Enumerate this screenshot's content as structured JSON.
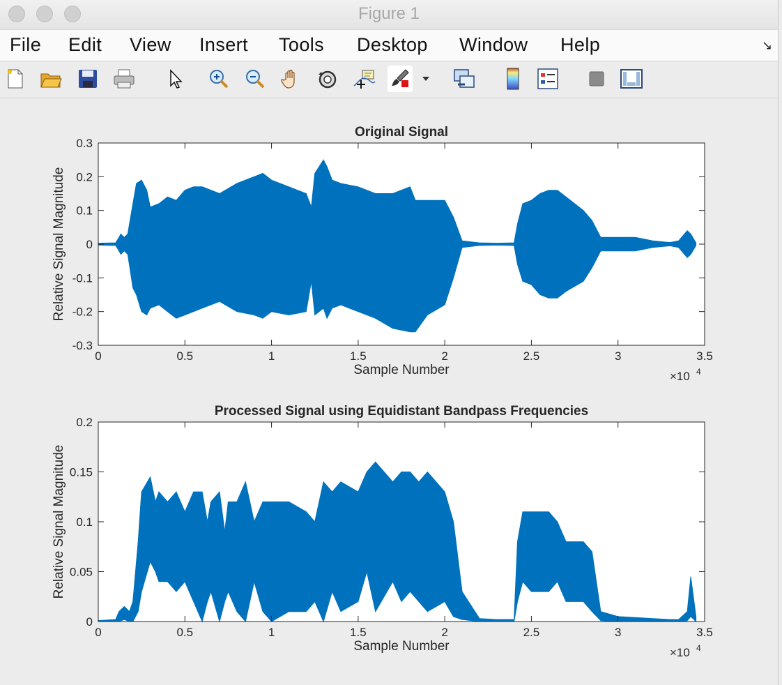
{
  "window": {
    "title": "Figure 1"
  },
  "menu": [
    "File",
    "Edit",
    "View",
    "Insert",
    "Tools",
    "Desktop",
    "Window",
    "Help"
  ],
  "toolbar": [
    "new-figure-icon",
    "open-file-icon",
    "save-icon",
    "print-icon",
    "pointer-icon",
    "zoom-in-icon",
    "zoom-out-icon",
    "pan-icon",
    "rotate-3d-icon",
    "data-cursor-icon",
    "brush-icon",
    "brush-dropdown-icon",
    "link-plot-icon",
    "colorbar-icon",
    "legend-icon",
    "hide-plot-tools-icon",
    "show-plot-tools-icon"
  ],
  "colors": {
    "series": "#0072BD",
    "axes_bg": "#ffffff",
    "figure_bg": "#ececec"
  },
  "chart_data": [
    {
      "type": "line",
      "title": "Original Signal",
      "xlabel": "Sample Number",
      "ylabel": "Relative Signal Magnitude",
      "xlim": [
        0,
        35000
      ],
      "ylim": [
        -0.3,
        0.3
      ],
      "x_exponent_label": "×10",
      "x_exponent_power": "4",
      "xticks": [
        "0",
        "0.5",
        "1",
        "1.5",
        "2",
        "2.5",
        "3",
        "3.5"
      ],
      "yticks": [
        "-0.3",
        "-0.2",
        "-0.1",
        "0",
        "0.1",
        "0.2",
        "0.3"
      ],
      "grid": false,
      "series": [
        {
          "x": [
            0,
            1000,
            1200,
            1300,
            1500,
            1700,
            2000,
            2200,
            2500,
            2800,
            3000,
            3500,
            4000,
            4500,
            5000,
            5500,
            6000,
            7000,
            8000,
            9000,
            9500,
            10000,
            11000,
            12000,
            12300,
            12500,
            13000,
            13200,
            13500,
            14000,
            15000,
            16000,
            17000,
            18000,
            18300,
            19000,
            20000,
            20500,
            21000,
            22000,
            23000,
            24000,
            24200,
            24500,
            25000,
            25500,
            26000,
            26500,
            27000,
            28000,
            28500,
            29000,
            30000,
            31000,
            32000,
            33000,
            33500,
            34000,
            34200,
            34500
          ],
          "upper": [
            0.003,
            0.004,
            0.02,
            0.03,
            0.02,
            0.03,
            0.12,
            0.18,
            0.19,
            0.16,
            0.11,
            0.12,
            0.14,
            0.13,
            0.16,
            0.17,
            0.17,
            0.15,
            0.18,
            0.2,
            0.21,
            0.19,
            0.17,
            0.15,
            0.11,
            0.21,
            0.25,
            0.23,
            0.19,
            0.18,
            0.17,
            0.15,
            0.15,
            0.17,
            0.13,
            0.13,
            0.13,
            0.08,
            0.01,
            0.004,
            0.003,
            0.004,
            0.06,
            0.12,
            0.13,
            0.15,
            0.16,
            0.16,
            0.14,
            0.1,
            0.07,
            0.02,
            0.02,
            0.02,
            0.01,
            0.005,
            0.01,
            0.04,
            0.03,
            0.004
          ],
          "lower": [
            -0.003,
            -0.004,
            -0.02,
            -0.03,
            -0.02,
            -0.03,
            -0.13,
            -0.15,
            -0.2,
            -0.21,
            -0.19,
            -0.18,
            -0.2,
            -0.22,
            -0.21,
            -0.2,
            -0.19,
            -0.17,
            -0.2,
            -0.21,
            -0.22,
            -0.2,
            -0.21,
            -0.2,
            -0.11,
            -0.21,
            -0.19,
            -0.22,
            -0.19,
            -0.18,
            -0.2,
            -0.22,
            -0.25,
            -0.26,
            -0.26,
            -0.21,
            -0.18,
            -0.1,
            -0.01,
            -0.004,
            -0.003,
            -0.004,
            -0.06,
            -0.11,
            -0.12,
            -0.15,
            -0.16,
            -0.16,
            -0.14,
            -0.11,
            -0.07,
            -0.02,
            -0.02,
            -0.02,
            -0.01,
            -0.005,
            -0.01,
            -0.04,
            -0.03,
            -0.004
          ]
        }
      ]
    },
    {
      "type": "line",
      "title": "Processed Signal using Equidistant Bandpass Frequencies",
      "xlabel": "Sample Number",
      "ylabel": "Relative Signal Magnitude",
      "xlim": [
        0,
        35000
      ],
      "ylim": [
        0,
        0.2
      ],
      "x_exponent_label": "×10",
      "x_exponent_power": "4",
      "xticks": [
        "0",
        "0.5",
        "1",
        "1.5",
        "2",
        "2.5",
        "3",
        "3.5"
      ],
      "yticks": [
        "0",
        "0.05",
        "0.1",
        "0.15",
        "0.2"
      ],
      "grid": false,
      "series": [
        {
          "x": [
            0,
            1000,
            1200,
            1500,
            1800,
            2000,
            2300,
            2500,
            3000,
            3300,
            3500,
            4000,
            4500,
            5000,
            5500,
            6000,
            6300,
            6500,
            7000,
            7300,
            7500,
            8000,
            8500,
            9000,
            9500,
            10000,
            11000,
            12000,
            12500,
            13000,
            13500,
            14000,
            15000,
            15500,
            16000,
            17000,
            17500,
            18000,
            18500,
            19000,
            20000,
            20500,
            21000,
            22000,
            23000,
            24000,
            24200,
            24500,
            25000,
            26000,
            26500,
            27000,
            28000,
            28500,
            29000,
            30000,
            31000,
            32000,
            33000,
            33500,
            34000,
            34200,
            34500
          ],
          "upper": [
            0.001,
            0.002,
            0.01,
            0.015,
            0.01,
            0.02,
            0.08,
            0.13,
            0.145,
            0.12,
            0.13,
            0.12,
            0.13,
            0.11,
            0.13,
            0.13,
            0.1,
            0.12,
            0.13,
            0.09,
            0.12,
            0.12,
            0.14,
            0.1,
            0.12,
            0.12,
            0.12,
            0.11,
            0.1,
            0.14,
            0.13,
            0.14,
            0.13,
            0.15,
            0.16,
            0.14,
            0.15,
            0.15,
            0.14,
            0.15,
            0.13,
            0.1,
            0.03,
            0.003,
            0.002,
            0.002,
            0.08,
            0.11,
            0.11,
            0.11,
            0.1,
            0.08,
            0.08,
            0.07,
            0.01,
            0.005,
            0.004,
            0.003,
            0.002,
            0.002,
            0.01,
            0.045,
            0.005
          ],
          "lower": [
            0,
            0,
            0,
            0.002,
            0,
            0,
            0.01,
            0.03,
            0.06,
            0.05,
            0.04,
            0.04,
            0.03,
            0.04,
            0.02,
            0.0,
            0.02,
            0.03,
            0.0,
            0.02,
            0.03,
            0.01,
            0.0,
            0.04,
            0.01,
            0.0,
            0.01,
            0.01,
            0.02,
            0.0,
            0.03,
            0.01,
            0.02,
            0.05,
            0.01,
            0.04,
            0.02,
            0.03,
            0.02,
            0.01,
            0.02,
            0.005,
            0.002,
            0,
            0,
            0,
            0.02,
            0.04,
            0.03,
            0.03,
            0.04,
            0.02,
            0.02,
            0.01,
            0.001,
            0,
            0,
            0,
            0,
            0,
            0.001,
            0.005,
            0
          ]
        }
      ]
    }
  ]
}
